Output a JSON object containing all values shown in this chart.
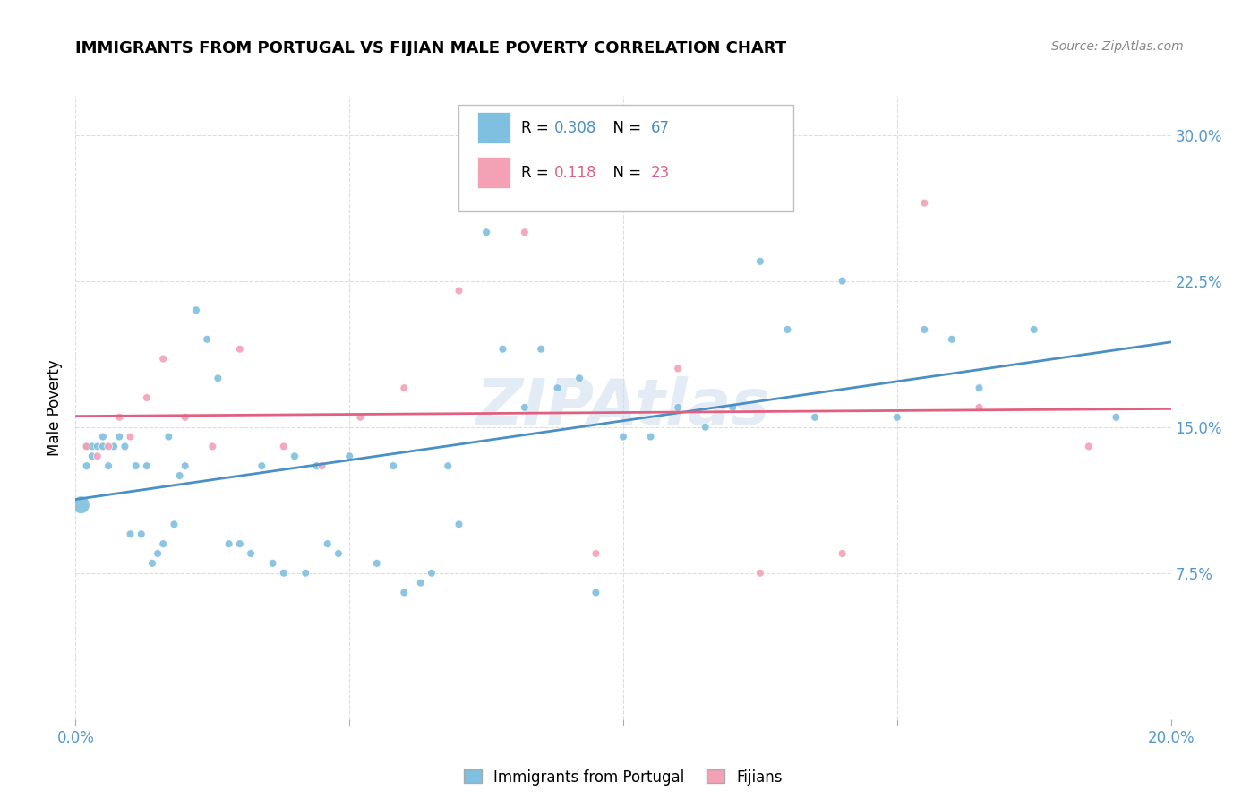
{
  "title": "IMMIGRANTS FROM PORTUGAL VS FIJIAN MALE POVERTY CORRELATION CHART",
  "source": "Source: ZipAtlas.com",
  "ylabel": "Male Poverty",
  "x_min": 0.0,
  "x_max": 0.2,
  "y_min": 0.0,
  "y_max": 0.32,
  "x_tick_positions": [
    0.0,
    0.05,
    0.1,
    0.15,
    0.2
  ],
  "x_tick_labels": [
    "0.0%",
    "",
    "",
    "",
    "20.0%"
  ],
  "y_tick_positions": [
    0.075,
    0.15,
    0.225,
    0.3
  ],
  "y_tick_labels": [
    "7.5%",
    "15.0%",
    "22.5%",
    "30.0%"
  ],
  "blue_color": "#7fbfdf",
  "pink_color": "#f4a0b5",
  "blue_line_color": "#4a90c4",
  "pink_line_color": "#e06080",
  "blue_R": "0.308",
  "blue_N": "67",
  "pink_R": "0.118",
  "pink_N": "23",
  "blue_label": "Immigrants from Portugal",
  "pink_label": "Fijians",
  "blue_x": [
    0.001,
    0.002,
    0.002,
    0.003,
    0.003,
    0.004,
    0.005,
    0.005,
    0.006,
    0.007,
    0.008,
    0.009,
    0.01,
    0.011,
    0.012,
    0.013,
    0.014,
    0.015,
    0.016,
    0.017,
    0.018,
    0.019,
    0.02,
    0.022,
    0.024,
    0.026,
    0.028,
    0.03,
    0.032,
    0.034,
    0.036,
    0.038,
    0.04,
    0.042,
    0.044,
    0.046,
    0.048,
    0.05,
    0.055,
    0.058,
    0.06,
    0.063,
    0.065,
    0.068,
    0.07,
    0.075,
    0.078,
    0.082,
    0.085,
    0.088,
    0.092,
    0.095,
    0.1,
    0.105,
    0.11,
    0.115,
    0.12,
    0.125,
    0.13,
    0.135,
    0.14,
    0.15,
    0.155,
    0.16,
    0.165,
    0.175,
    0.19
  ],
  "blue_y": [
    0.11,
    0.13,
    0.14,
    0.135,
    0.14,
    0.14,
    0.145,
    0.14,
    0.13,
    0.14,
    0.145,
    0.14,
    0.095,
    0.13,
    0.095,
    0.13,
    0.08,
    0.085,
    0.09,
    0.145,
    0.1,
    0.125,
    0.13,
    0.21,
    0.195,
    0.175,
    0.09,
    0.09,
    0.085,
    0.13,
    0.08,
    0.075,
    0.135,
    0.075,
    0.13,
    0.09,
    0.085,
    0.135,
    0.08,
    0.13,
    0.065,
    0.07,
    0.075,
    0.13,
    0.1,
    0.25,
    0.19,
    0.16,
    0.19,
    0.17,
    0.175,
    0.065,
    0.145,
    0.145,
    0.16,
    0.15,
    0.16,
    0.235,
    0.2,
    0.155,
    0.225,
    0.155,
    0.2,
    0.195,
    0.17,
    0.2,
    0.155
  ],
  "blue_sizes": [
    200,
    40,
    40,
    40,
    40,
    40,
    40,
    40,
    40,
    40,
    40,
    40,
    40,
    40,
    40,
    40,
    40,
    40,
    40,
    40,
    40,
    40,
    40,
    40,
    40,
    40,
    40,
    40,
    40,
    40,
    40,
    40,
    40,
    40,
    40,
    40,
    40,
    40,
    40,
    40,
    40,
    40,
    40,
    40,
    40,
    40,
    40,
    40,
    40,
    40,
    40,
    40,
    40,
    40,
    40,
    40,
    40,
    40,
    40,
    40,
    40,
    40,
    40,
    40,
    40,
    40,
    40
  ],
  "pink_x": [
    0.002,
    0.004,
    0.006,
    0.008,
    0.01,
    0.013,
    0.016,
    0.02,
    0.025,
    0.03,
    0.038,
    0.045,
    0.052,
    0.06,
    0.07,
    0.082,
    0.095,
    0.11,
    0.125,
    0.14,
    0.155,
    0.165,
    0.185
  ],
  "pink_y": [
    0.14,
    0.135,
    0.14,
    0.155,
    0.145,
    0.165,
    0.185,
    0.155,
    0.14,
    0.19,
    0.14,
    0.13,
    0.155,
    0.17,
    0.22,
    0.25,
    0.085,
    0.18,
    0.075,
    0.085,
    0.265,
    0.16,
    0.14
  ],
  "grid_color": "#dddddd",
  "tick_color": "#5599cc"
}
